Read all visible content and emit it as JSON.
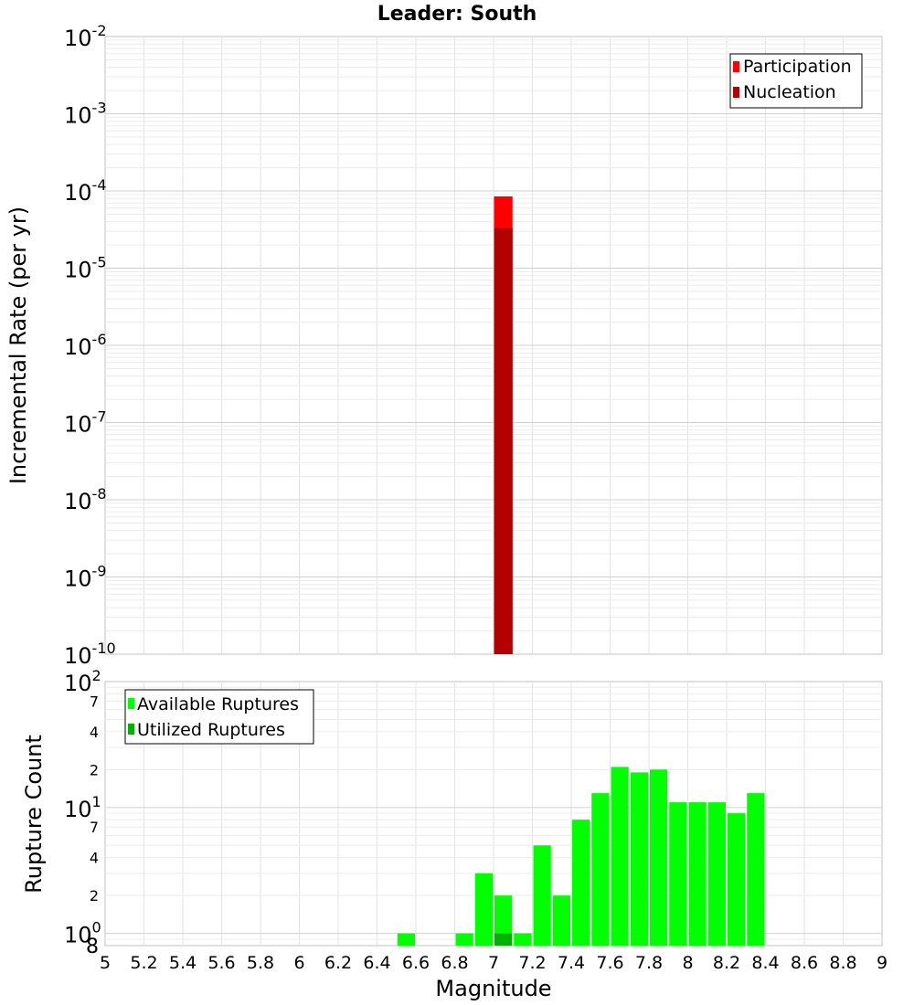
{
  "chart_data": [
    {
      "type": "bar",
      "title": "Leader: South",
      "xlabel": "",
      "ylabel": "Incremental Rate (per yr)",
      "xlim": [
        5,
        9
      ],
      "ylim": [
        1e-10,
        0.01
      ],
      "yscale": "log",
      "y_ticks": [
        {
          "base": "10",
          "exp": "-10",
          "value": 1e-10
        },
        {
          "base": "10",
          "exp": "-9",
          "value": 1e-09
        },
        {
          "base": "10",
          "exp": "-8",
          "value": 1e-08
        },
        {
          "base": "10",
          "exp": "-7",
          "value": 1e-07
        },
        {
          "base": "10",
          "exp": "-6",
          "value": 1e-06
        },
        {
          "base": "10",
          "exp": "-5",
          "value": 1e-05
        },
        {
          "base": "10",
          "exp": "-4",
          "value": 0.0001
        },
        {
          "base": "10",
          "exp": "-3",
          "value": 0.001
        },
        {
          "base": "10",
          "exp": "-2",
          "value": 0.01
        }
      ],
      "legend_position": "top-right",
      "bar_width": 0.1,
      "series": [
        {
          "name": "Participation",
          "color": "#ff0000",
          "x": [
            7.05
          ],
          "values": [
            8.5e-05
          ]
        },
        {
          "name": "Nucleation",
          "color": "#b30000",
          "x": [
            7.05
          ],
          "values": [
            3.3e-05
          ]
        }
      ],
      "grid": true
    },
    {
      "type": "bar",
      "title": "",
      "xlabel": "Magnitude",
      "ylabel": "Rupture Count",
      "xlim": [
        5,
        9
      ],
      "ylim": [
        0.8,
        100
      ],
      "yscale": "log",
      "x_ticks": [
        "5",
        "5.2",
        "5.4",
        "5.6",
        "5.8",
        "6",
        "6.2",
        "6.4",
        "6.6",
        "6.8",
        "7",
        "7.2",
        "7.4",
        "7.6",
        "7.8",
        "8",
        "8.2",
        "8.4",
        "8.6",
        "8.8",
        "9"
      ],
      "y_major_ticks": [
        {
          "base": "10",
          "exp": "0",
          "value": 1
        },
        {
          "base": "10",
          "exp": "1",
          "value": 10
        },
        {
          "base": "10",
          "exp": "2",
          "value": 100
        }
      ],
      "y_minor_ticks": [
        {
          "label": "8",
          "value": 0.8
        },
        {
          "label": "2",
          "value": 2
        },
        {
          "label": "4",
          "value": 4
        },
        {
          "label": "7",
          "value": 7
        },
        {
          "label": "2",
          "value": 20
        },
        {
          "label": "4",
          "value": 40
        },
        {
          "label": "7",
          "value": 70
        }
      ],
      "legend_position": "top-left",
      "bar_width": 0.1,
      "series": [
        {
          "name": "Available Ruptures",
          "color": "#00ff00",
          "x": [
            6.55,
            6.85,
            6.95,
            7.05,
            7.15,
            7.25,
            7.35,
            7.45,
            7.55,
            7.65,
            7.75,
            7.85,
            7.95,
            8.05,
            8.15,
            8.25,
            8.35
          ],
          "values": [
            1,
            1,
            3,
            2,
            1,
            5,
            2,
            8,
            13,
            21,
            19,
            20,
            11,
            11,
            11,
            9,
            13
          ]
        },
        {
          "name": "Utilized Ruptures",
          "color": "#00b300",
          "x": [
            7.05
          ],
          "values": [
            1
          ]
        }
      ],
      "grid": true
    }
  ]
}
